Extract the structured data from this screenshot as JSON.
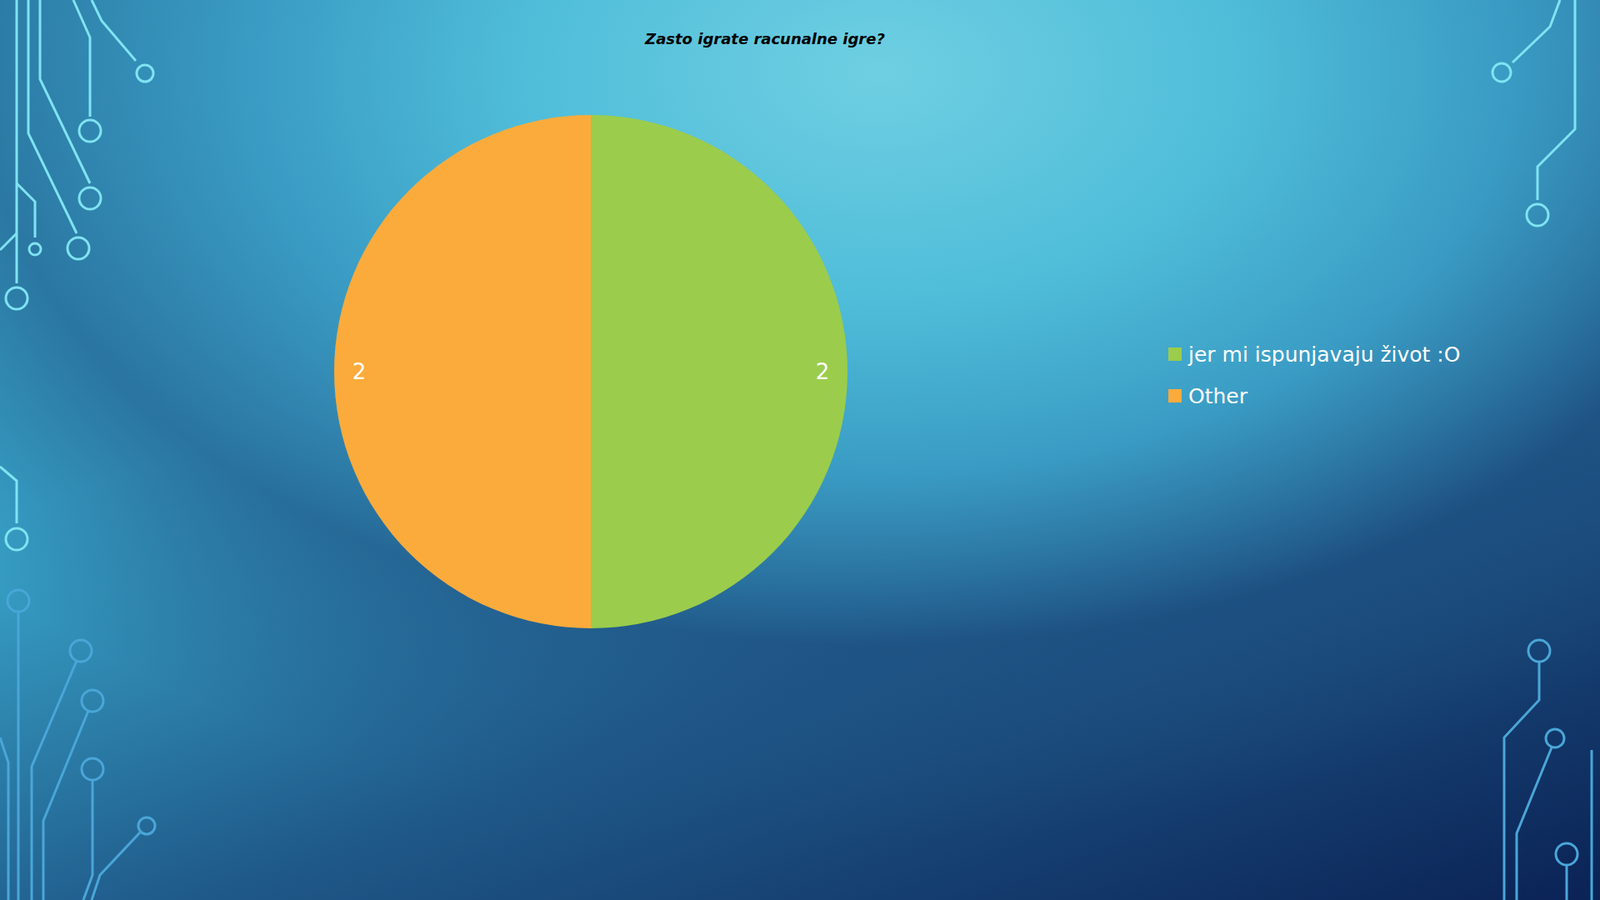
{
  "chart_data": {
    "type": "pie",
    "title": "Zasto igrate racunalne igre?",
    "categories": [
      "jer mi ispunjavaju život :O",
      "Other"
    ],
    "values": [
      2,
      2
    ],
    "colors": [
      "#9bcc4c",
      "#fbab3b"
    ],
    "data_labels": true,
    "legend": "right"
  }
}
